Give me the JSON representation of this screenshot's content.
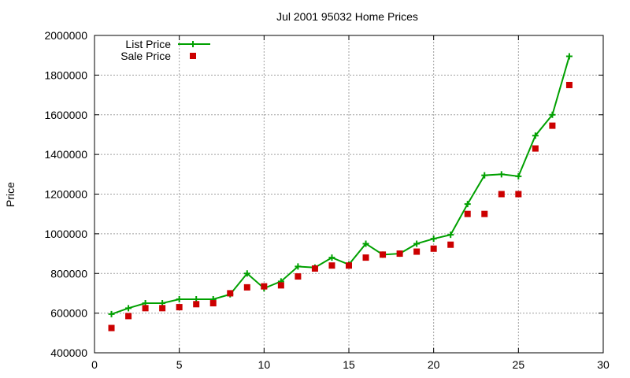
{
  "chart_data": {
    "type": "line",
    "title": "Jul 2001 95032 Home Prices",
    "ylabel": "Price",
    "xlabel": "",
    "xlim": [
      0,
      30
    ],
    "ylim": [
      400000,
      2000000
    ],
    "xticks": [
      0,
      5,
      10,
      15,
      20,
      25,
      30
    ],
    "yticks": [
      400000,
      600000,
      800000,
      1000000,
      1200000,
      1400000,
      1600000,
      1800000,
      2000000
    ],
    "grid": true,
    "legend_position": "top-left",
    "colors": {
      "list": "#00a000",
      "sale": "#cc0000",
      "grid": "#a0a0a0"
    },
    "series": [
      {
        "name": "List Price",
        "style": "line-with-plus-markers",
        "x": [
          1,
          2,
          3,
          4,
          5,
          6,
          7,
          8,
          9,
          10,
          11,
          12,
          13,
          14,
          15,
          16,
          17,
          18,
          19,
          20,
          21,
          22,
          23,
          24,
          25,
          26,
          27,
          28
        ],
        "values": [
          595000,
          625000,
          650000,
          650000,
          670000,
          670000,
          670000,
          695000,
          800000,
          725000,
          760000,
          835000,
          830000,
          880000,
          845000,
          950000,
          895000,
          900000,
          950000,
          975000,
          995000,
          1150000,
          1295000,
          1300000,
          1290000,
          1495000,
          1600000,
          1895000
        ]
      },
      {
        "name": "Sale Price",
        "style": "square-points",
        "x": [
          1,
          2,
          3,
          4,
          5,
          6,
          7,
          8,
          9,
          10,
          11,
          12,
          13,
          14,
          15,
          16,
          17,
          18,
          19,
          20,
          21,
          22,
          23,
          24,
          25,
          26,
          27,
          28
        ],
        "values": [
          525000,
          585000,
          625000,
          625000,
          630000,
          645000,
          650000,
          700000,
          730000,
          735000,
          740000,
          785000,
          825000,
          840000,
          840000,
          880000,
          895000,
          900000,
          910000,
          925000,
          945000,
          1100000,
          1100000,
          1200000,
          1200000,
          1430000,
          1545000,
          1750000
        ]
      }
    ]
  }
}
